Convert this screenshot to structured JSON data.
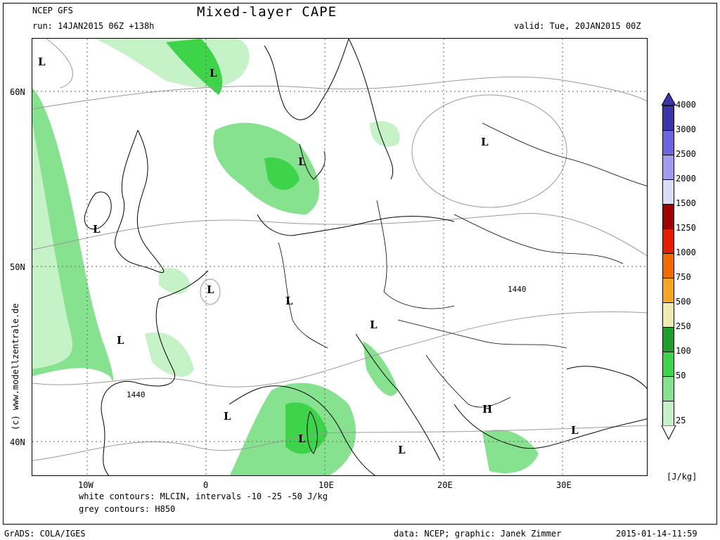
{
  "header": {
    "model": "NCEP GFS",
    "run": "run: 14JAN2015 06Z +138h",
    "title": "Mixed-layer CAPE",
    "valid": "valid: Tue, 20JAN2015 00Z"
  },
  "axes": {
    "lat_labels": [
      "60N",
      "50N",
      "40N"
    ],
    "lon_labels": [
      "10W",
      "0",
      "10E",
      "20E",
      "30E"
    ]
  },
  "notes": {
    "white_contours": "white contours: MLCIN, intervals -10 -25 -50 J/kg",
    "grey_contours": "grey contours: H850"
  },
  "footer": {
    "left": "GrADS: COLA/IGES",
    "center": "data: NCEP; graphic: Janek Zimmer",
    "right": "2015-01-14-11:59"
  },
  "credit": "(c) www.modellzentrale.de",
  "pressure_marks": [
    "L",
    "L",
    "L",
    "L",
    "L",
    "L",
    "L",
    "L",
    "L",
    "L",
    "L",
    "L",
    "L",
    "H"
  ],
  "contour_labels": [
    "1440",
    "1440"
  ],
  "legend": {
    "unit": "[J/kg]",
    "levels": [
      {
        "label": "4000",
        "color": "#3a35a8"
      },
      {
        "label": "3000",
        "color": "#6a66e0"
      },
      {
        "label": "2500",
        "color": "#a09cf0"
      },
      {
        "label": "2000",
        "color": "#dcdcf6"
      },
      {
        "label": "1500",
        "color": "#a00000"
      },
      {
        "label": "1250",
        "color": "#e81a00"
      },
      {
        "label": "1000",
        "color": "#f26a00"
      },
      {
        "label": "750",
        "color": "#f5a623"
      },
      {
        "label": "500",
        "color": "#f0ebb0"
      },
      {
        "label": "250",
        "color": "#1e9e2a"
      },
      {
        "label": "100",
        "color": "#3ed44a"
      },
      {
        "label": "50",
        "color": "#86e28f"
      },
      {
        "label": "25",
        "color": "#c6f2c8"
      }
    ]
  },
  "colors": {
    "cape_light": "#c6f2c8",
    "cape_mid": "#86e28f",
    "cape_dark": "#3ed44a",
    "grid": "#666666",
    "h850": "#9a9a9a"
  }
}
